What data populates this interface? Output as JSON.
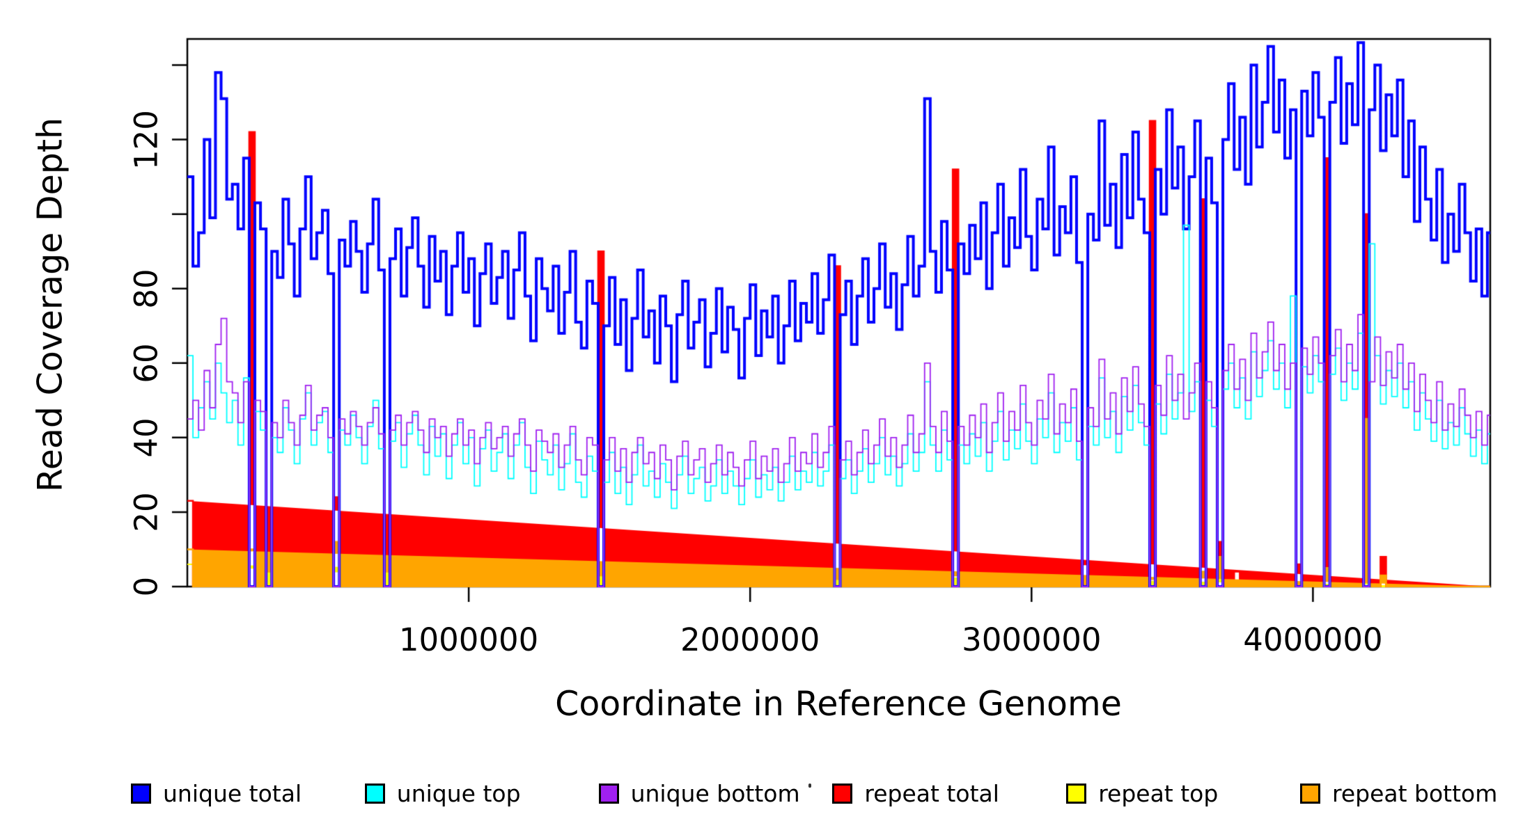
{
  "figure": {
    "background": "#ffffff"
  },
  "chart_data": {
    "type": "line",
    "subtype": "step",
    "title": "",
    "xlabel": "Coordinate in Reference Genome",
    "ylabel": "Read Coverage Depth",
    "xlim": [
      0,
      4630000
    ],
    "ylim": [
      0,
      147
    ],
    "grid": false,
    "legend_position": "bottom",
    "x_step": 20000,
    "x_ticks": [
      {
        "value": 1000000,
        "label": "1000000"
      },
      {
        "value": 2000000,
        "label": "2000000"
      },
      {
        "value": 3000000,
        "label": "3000000"
      },
      {
        "value": 4000000,
        "label": "4000000"
      }
    ],
    "y_ticks": [
      {
        "value": 0,
        "label": "0"
      },
      {
        "value": 20,
        "label": "20"
      },
      {
        "value": 40,
        "label": "40"
      },
      {
        "value": 60,
        "label": "60"
      },
      {
        "value": 80,
        "label": "80"
      },
      {
        "value": 100,
        "label": ""
      },
      {
        "value": 120,
        "label": "120"
      },
      {
        "value": 140,
        "label": ""
      }
    ],
    "draw_order": [
      "repeat top",
      "repeat total",
      "repeat bottom",
      "unique total",
      "unique top",
      "unique bottom"
    ],
    "series": [
      {
        "name": "unique total",
        "color": "#0000FF",
        "line_width": 4,
        "filled": false,
        "values": [
          110,
          86,
          95,
          120,
          99,
          138,
          131,
          104,
          108,
          96,
          115,
          0,
          103,
          96,
          0,
          90,
          83,
          104,
          92,
          78,
          96,
          110,
          88,
          95,
          101,
          84,
          0,
          93,
          86,
          98,
          90,
          79,
          92,
          104,
          85,
          0,
          88,
          96,
          78,
          91,
          99,
          86,
          75,
          94,
          82,
          90,
          73,
          86,
          95,
          79,
          88,
          70,
          84,
          92,
          76,
          83,
          90,
          72,
          85,
          95,
          78,
          66,
          88,
          80,
          74,
          86,
          68,
          79,
          90,
          71,
          64,
          82,
          76,
          0,
          70,
          83,
          65,
          77,
          58,
          72,
          85,
          67,
          74,
          60,
          78,
          70,
          55,
          73,
          82,
          64,
          71,
          77,
          59,
          68,
          80,
          63,
          75,
          69,
          56,
          72,
          81,
          62,
          74,
          67,
          78,
          60,
          70,
          82,
          66,
          76,
          71,
          84,
          68,
          77,
          89,
          0,
          73,
          82,
          65,
          78,
          88,
          71,
          80,
          92,
          75,
          84,
          69,
          81,
          94,
          78,
          86,
          131,
          90,
          79,
          98,
          85,
          0,
          92,
          84,
          97,
          88,
          103,
          80,
          95,
          108,
          86,
          99,
          91,
          112,
          94,
          85,
          104,
          96,
          118,
          89,
          102,
          95,
          110,
          87,
          0,
          100,
          93,
          125,
          97,
          108,
          91,
          116,
          99,
          122,
          104,
          95,
          0,
          112,
          100,
          128,
          107,
          118,
          96,
          110,
          125,
          0,
          115,
          103,
          0,
          120,
          135,
          112,
          126,
          108,
          140,
          118,
          130,
          145,
          122,
          136,
          115,
          128,
          0,
          133,
          121,
          138,
          126,
          0,
          130,
          142,
          119,
          135,
          124,
          146,
          0,
          128,
          140,
          117,
          132,
          121,
          136,
          110,
          125,
          98,
          118,
          104,
          93,
          112,
          87,
          100,
          90,
          108,
          95,
          82,
          96,
          78,
          95
        ]
      },
      {
        "name": "unique top",
        "color": "#00FFFF",
        "line_width": 1.8,
        "filled": false,
        "values": [
          62,
          40,
          48,
          55,
          45,
          60,
          52,
          44,
          50,
          38,
          56,
          0,
          47,
          42,
          0,
          40,
          36,
          48,
          42,
          33,
          45,
          52,
          38,
          44,
          47,
          36,
          0,
          42,
          38,
          46,
          40,
          33,
          43,
          50,
          37,
          0,
          39,
          44,
          32,
          41,
          46,
          38,
          30,
          43,
          35,
          41,
          29,
          38,
          44,
          33,
          40,
          27,
          37,
          42,
          31,
          36,
          41,
          29,
          38,
          44,
          32,
          25,
          39,
          34,
          30,
          38,
          26,
          33,
          41,
          28,
          24,
          35,
          31,
          0,
          28,
          36,
          25,
          32,
          22,
          30,
          38,
          27,
          31,
          24,
          33,
          28,
          21,
          30,
          35,
          25,
          29,
          32,
          23,
          27,
          34,
          25,
          31,
          27,
          22,
          29,
          34,
          24,
          30,
          26,
          32,
          23,
          28,
          35,
          26,
          31,
          28,
          36,
          27,
          31,
          38,
          0,
          29,
          34,
          25,
          31,
          37,
          28,
          33,
          40,
          30,
          35,
          27,
          33,
          41,
          31,
          36,
          55,
          38,
          31,
          42,
          34,
          0,
          38,
          33,
          41,
          35,
          44,
          31,
          39,
          47,
          34,
          42,
          37,
          49,
          39,
          33,
          45,
          40,
          52,
          36,
          44,
          39,
          48,
          34,
          0,
          43,
          38,
          56,
          40,
          47,
          36,
          51,
          42,
          54,
          44,
          38,
          0,
          49,
          41,
          57,
          45,
          52,
          97,
          47,
          55,
          0,
          50,
          43,
          0,
          53,
          60,
          48,
          56,
          45,
          63,
          51,
          58,
          66,
          53,
          60,
          48,
          78,
          0,
          59,
          52,
          62,
          55,
          0,
          57,
          64,
          50,
          60,
          53,
          68,
          0,
          92,
          62,
          49,
          58,
          51,
          60,
          48,
          55,
          42,
          52,
          45,
          39,
          50,
          37,
          44,
          38,
          48,
          41,
          35,
          42,
          33,
          41
        ]
      },
      {
        "name": "unique bottom",
        "color": "#A020F0",
        "line_width": 1.8,
        "filled": false,
        "values": [
          45,
          50,
          42,
          58,
          48,
          65,
          72,
          55,
          52,
          44,
          55,
          0,
          50,
          47,
          0,
          44,
          40,
          50,
          44,
          38,
          46,
          54,
          42,
          46,
          48,
          40,
          0,
          45,
          41,
          47,
          43,
          38,
          44,
          48,
          41,
          0,
          42,
          46,
          38,
          44,
          47,
          42,
          36,
          45,
          40,
          43,
          35,
          41,
          45,
          38,
          42,
          33,
          40,
          44,
          37,
          40,
          43,
          35,
          41,
          45,
          38,
          31,
          42,
          39,
          36,
          41,
          32,
          38,
          43,
          34,
          30,
          40,
          38,
          0,
          34,
          40,
          31,
          37,
          28,
          36,
          40,
          33,
          36,
          29,
          38,
          34,
          26,
          35,
          39,
          30,
          34,
          37,
          28,
          33,
          38,
          30,
          36,
          32,
          27,
          34,
          39,
          29,
          35,
          31,
          37,
          28,
          33,
          40,
          31,
          36,
          33,
          41,
          32,
          36,
          43,
          0,
          34,
          39,
          30,
          36,
          42,
          33,
          38,
          45,
          35,
          40,
          32,
          38,
          46,
          36,
          41,
          60,
          43,
          36,
          47,
          39,
          0,
          43,
          38,
          46,
          40,
          49,
          36,
          44,
          52,
          39,
          47,
          42,
          54,
          44,
          38,
          50,
          45,
          57,
          41,
          49,
          44,
          53,
          39,
          0,
          48,
          43,
          61,
          45,
          52,
          41,
          56,
          47,
          59,
          49,
          43,
          0,
          54,
          46,
          62,
          50,
          57,
          45,
          52,
          60,
          0,
          55,
          48,
          0,
          58,
          65,
          53,
          61,
          50,
          68,
          56,
          63,
          71,
          58,
          65,
          53,
          60,
          0,
          64,
          57,
          67,
          60,
          0,
          62,
          69,
          55,
          65,
          58,
          73,
          0,
          55,
          67,
          54,
          63,
          56,
          65,
          53,
          60,
          47,
          57,
          50,
          44,
          55,
          42,
          49,
          43,
          53,
          46,
          40,
          47,
          38,
          46
        ]
      },
      {
        "name": "repeat total",
        "color": "#FF0000",
        "line_width": 2.5,
        "filled": true,
        "base": 0,
        "spikes": {
          "0": 23,
          "11": 122,
          "14": 8,
          "26": 24,
          "35": 8,
          "37": 3,
          "73": 90,
          "115": 86,
          "118": 2,
          "136": 112,
          "140": 3,
          "159": 6,
          "171": 125,
          "180": 104,
          "183": 12,
          "186": 4,
          "197": 6,
          "202": 115,
          "209": 100,
          "212": 8
        }
      },
      {
        "name": "repeat top",
        "color": "#FFFF00",
        "line_width": 2,
        "filled": true,
        "base": 0,
        "spikes": {
          "0": 6,
          "11": 5,
          "26": 4,
          "183": 4,
          "209": 20
        }
      },
      {
        "name": "repeat bottom",
        "color": "#FFA500",
        "line_width": 2.5,
        "filled": true,
        "base": 0,
        "spikes": {
          "0": 10,
          "11": 10,
          "14": 4,
          "26": 12,
          "35": 4,
          "73": 3,
          "115": 2,
          "136": 3,
          "171": 2,
          "180": 4,
          "183": 8,
          "202": 5,
          "209": 45,
          "212": 3
        }
      }
    ]
  }
}
